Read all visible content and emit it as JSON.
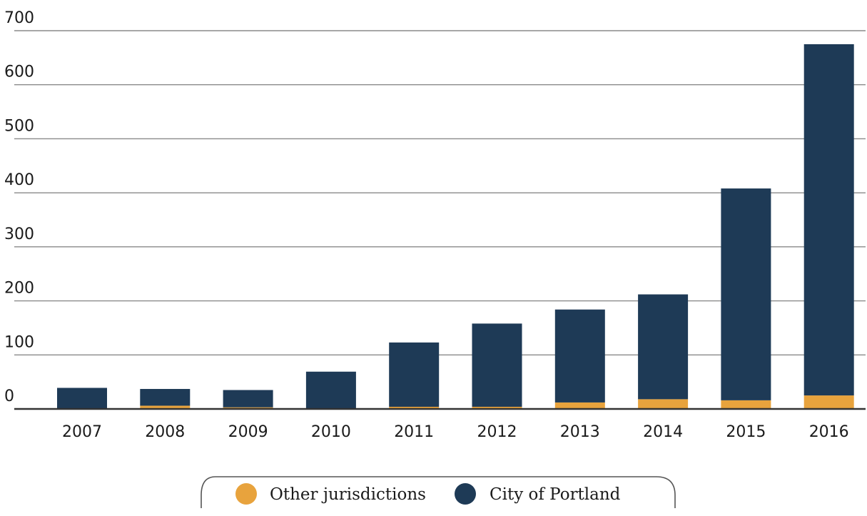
{
  "chart_data": {
    "type": "bar",
    "stacked": true,
    "title": "",
    "xlabel": "",
    "ylabel": "",
    "categories": [
      "2007",
      "2008",
      "2009",
      "2010",
      "2011",
      "2012",
      "2013",
      "2014",
      "2015",
      "2016"
    ],
    "series": [
      {
        "name": "Other jurisdictions",
        "color": "#e8a33d",
        "values": [
          1,
          6,
          3,
          1,
          4,
          4,
          12,
          18,
          16,
          25
        ]
      },
      {
        "name": "City of Portland",
        "color": "#1e3a56",
        "values": [
          38,
          31,
          32,
          68,
          119,
          154,
          172,
          194,
          392,
          650
        ]
      }
    ],
    "ylim": [
      0,
      700
    ],
    "yticks": [
      0,
      100,
      200,
      300,
      400,
      500,
      600,
      700
    ],
    "grid": true,
    "legend_position": "bottom-center"
  }
}
